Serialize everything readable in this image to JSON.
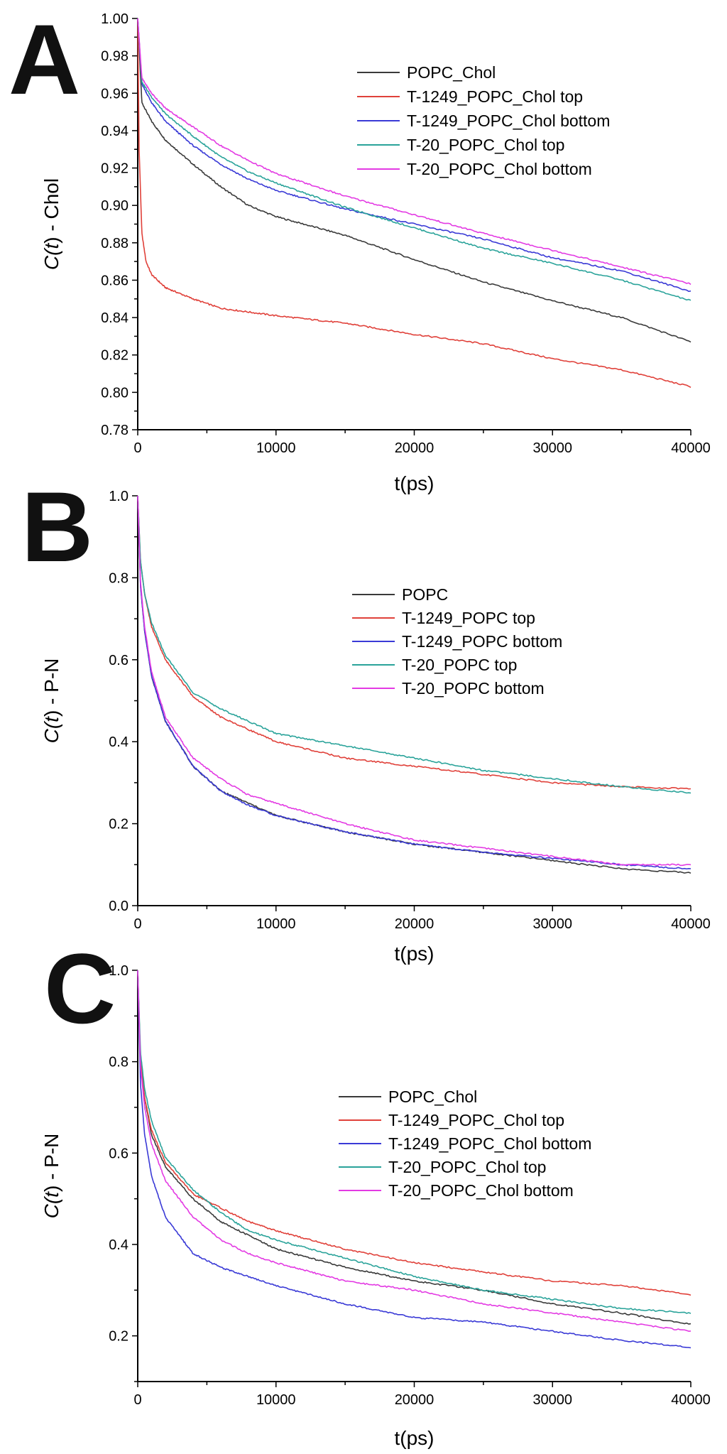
{
  "colors": {
    "black": "#3a3a3a",
    "red": "#e0413a",
    "blue": "#3a3ad6",
    "teal": "#2aa39a",
    "magenta": "#e33ae3"
  },
  "chart_data": [
    {
      "type": "line",
      "panel": "A",
      "xlabel": "t(ps)",
      "ylabel_parts": [
        "C(",
        "t",
        ") - Chol"
      ],
      "xlim": [
        0,
        40000
      ],
      "ylim": [
        0.78,
        1.0
      ],
      "xticks": [
        0,
        10000,
        20000,
        30000,
        40000
      ],
      "xtick_labels": [
        "0",
        "10000",
        "20000",
        "30000",
        "40000"
      ],
      "yticks": [
        0.78,
        0.8,
        0.82,
        0.84,
        0.86,
        0.88,
        0.9,
        0.92,
        0.94,
        0.96,
        0.98,
        1.0
      ],
      "ytick_labels": [
        "0.78",
        "0.80",
        "0.82",
        "0.84",
        "0.86",
        "0.88",
        "0.90",
        "0.92",
        "0.94",
        "0.96",
        "0.98",
        "1.00"
      ],
      "legend_position": "top-right",
      "series": [
        {
          "name": "POPC_Chol",
          "color": "#3a3a3a",
          "x": [
            0,
            300,
            1000,
            2000,
            4000,
            6000,
            8000,
            10000,
            15000,
            20000,
            25000,
            30000,
            35000,
            40000
          ],
          "y": [
            1.0,
            0.955,
            0.945,
            0.935,
            0.922,
            0.91,
            0.9,
            0.894,
            0.884,
            0.871,
            0.859,
            0.849,
            0.84,
            0.827
          ]
        },
        {
          "name": "T-1249_POPC_Chol top",
          "color": "#e0413a",
          "x": [
            0,
            100,
            300,
            600,
            1000,
            2000,
            4000,
            6000,
            10000,
            15000,
            20000,
            25000,
            30000,
            35000,
            40000
          ],
          "y": [
            1.0,
            0.93,
            0.885,
            0.87,
            0.863,
            0.856,
            0.85,
            0.845,
            0.841,
            0.837,
            0.831,
            0.826,
            0.818,
            0.812,
            0.803
          ]
        },
        {
          "name": "T-1249_POPC_Chol bottom",
          "color": "#3a3ad6",
          "x": [
            0,
            300,
            1000,
            2000,
            4000,
            6000,
            8000,
            10000,
            15000,
            20000,
            25000,
            30000,
            35000,
            40000
          ],
          "y": [
            1.0,
            0.965,
            0.955,
            0.945,
            0.932,
            0.922,
            0.914,
            0.908,
            0.898,
            0.89,
            0.882,
            0.872,
            0.865,
            0.854
          ]
        },
        {
          "name": "T-20_POPC_Chol top",
          "color": "#2aa39a",
          "x": [
            0,
            300,
            1000,
            2000,
            4000,
            6000,
            8000,
            10000,
            15000,
            20000,
            25000,
            30000,
            35000,
            40000
          ],
          "y": [
            1.0,
            0.966,
            0.958,
            0.949,
            0.937,
            0.926,
            0.918,
            0.912,
            0.899,
            0.888,
            0.877,
            0.869,
            0.86,
            0.849
          ]
        },
        {
          "name": "T-20_POPC_Chol bottom",
          "color": "#e33ae3",
          "x": [
            0,
            300,
            1000,
            2000,
            4000,
            6000,
            8000,
            10000,
            15000,
            20000,
            25000,
            30000,
            35000,
            40000
          ],
          "y": [
            1.0,
            0.968,
            0.96,
            0.952,
            0.942,
            0.932,
            0.924,
            0.917,
            0.905,
            0.895,
            0.885,
            0.876,
            0.867,
            0.858
          ]
        }
      ]
    },
    {
      "type": "line",
      "panel": "B",
      "xlabel": "t(ps)",
      "ylabel_parts": [
        "C(",
        "t",
        ") - P-N"
      ],
      "xlim": [
        0,
        40000
      ],
      "ylim": [
        0.0,
        1.0
      ],
      "xticks": [
        0,
        10000,
        20000,
        30000,
        40000
      ],
      "xtick_labels": [
        "0",
        "10000",
        "20000",
        "30000",
        "40000"
      ],
      "yticks": [
        0.0,
        0.2,
        0.4,
        0.6,
        0.8,
        1.0
      ],
      "ytick_labels": [
        "0.0",
        "0.2",
        "0.4",
        "0.6",
        "0.8",
        "1.0"
      ],
      "legend_position": "center-right",
      "series": [
        {
          "name": "POPC",
          "color": "#3a3a3a",
          "x": [
            0,
            200,
            500,
            1000,
            2000,
            4000,
            6000,
            8000,
            10000,
            15000,
            20000,
            25000,
            30000,
            35000,
            40000
          ],
          "y": [
            1.0,
            0.78,
            0.67,
            0.56,
            0.45,
            0.34,
            0.28,
            0.25,
            0.22,
            0.18,
            0.15,
            0.13,
            0.11,
            0.09,
            0.08
          ]
        },
        {
          "name": "T-1249_POPC top",
          "color": "#e0413a",
          "x": [
            0,
            200,
            500,
            1000,
            2000,
            4000,
            6000,
            8000,
            10000,
            15000,
            20000,
            25000,
            30000,
            35000,
            40000
          ],
          "y": [
            1.0,
            0.84,
            0.76,
            0.68,
            0.6,
            0.51,
            0.46,
            0.43,
            0.4,
            0.36,
            0.34,
            0.32,
            0.3,
            0.29,
            0.285
          ]
        },
        {
          "name": "T-1249_POPC bottom",
          "color": "#3a3ad6",
          "x": [
            0,
            200,
            500,
            1000,
            2000,
            4000,
            6000,
            8000,
            10000,
            15000,
            20000,
            25000,
            30000,
            35000,
            40000
          ],
          "y": [
            1.0,
            0.78,
            0.67,
            0.56,
            0.45,
            0.34,
            0.28,
            0.245,
            0.22,
            0.18,
            0.15,
            0.13,
            0.115,
            0.1,
            0.09
          ]
        },
        {
          "name": "T-20_POPC top",
          "color": "#2aa39a",
          "x": [
            0,
            200,
            500,
            1000,
            2000,
            4000,
            6000,
            8000,
            10000,
            15000,
            20000,
            25000,
            30000,
            35000,
            40000
          ],
          "y": [
            1.0,
            0.84,
            0.76,
            0.69,
            0.61,
            0.52,
            0.48,
            0.45,
            0.42,
            0.39,
            0.36,
            0.33,
            0.31,
            0.29,
            0.275
          ]
        },
        {
          "name": "T-20_POPC bottom",
          "color": "#e33ae3",
          "x": [
            0,
            200,
            500,
            1000,
            2000,
            4000,
            6000,
            8000,
            10000,
            15000,
            20000,
            25000,
            30000,
            35000,
            40000
          ],
          "y": [
            1.0,
            0.79,
            0.68,
            0.57,
            0.46,
            0.36,
            0.31,
            0.27,
            0.25,
            0.2,
            0.16,
            0.14,
            0.12,
            0.1,
            0.1
          ]
        }
      ]
    },
    {
      "type": "line",
      "panel": "C",
      "xlabel": "t(ps)",
      "ylabel_parts": [
        "C(",
        "t",
        ") - P-N"
      ],
      "xlim": [
        0,
        40000
      ],
      "ylim": [
        0.1,
        1.0
      ],
      "xticks": [
        0,
        10000,
        20000,
        30000,
        40000
      ],
      "xtick_labels": [
        "0",
        "10000",
        "20000",
        "30000",
        "40000"
      ],
      "yticks": [
        0.2,
        0.4,
        0.6,
        0.8,
        1.0
      ],
      "ytick_labels": [
        "0.2",
        "0.4",
        "0.6",
        "0.8",
        "1.0"
      ],
      "legend_position": "center-right",
      "series": [
        {
          "name": "POPC_Chol",
          "color": "#3a3a3a",
          "x": [
            0,
            200,
            500,
            1000,
            2000,
            4000,
            6000,
            8000,
            10000,
            15000,
            20000,
            25000,
            30000,
            35000,
            40000
          ],
          "y": [
            1.0,
            0.8,
            0.72,
            0.64,
            0.57,
            0.5,
            0.45,
            0.42,
            0.39,
            0.35,
            0.32,
            0.3,
            0.27,
            0.25,
            0.225
          ]
        },
        {
          "name": "T-1249_POPC_Chol top",
          "color": "#e0413a",
          "x": [
            0,
            200,
            500,
            1000,
            2000,
            4000,
            6000,
            8000,
            10000,
            15000,
            20000,
            25000,
            30000,
            35000,
            40000
          ],
          "y": [
            1.0,
            0.8,
            0.72,
            0.65,
            0.58,
            0.51,
            0.48,
            0.45,
            0.43,
            0.39,
            0.36,
            0.34,
            0.32,
            0.31,
            0.29
          ]
        },
        {
          "name": "T-1249_POPC_Chol bottom",
          "color": "#3a3ad6",
          "x": [
            0,
            200,
            500,
            1000,
            2000,
            4000,
            6000,
            8000,
            10000,
            15000,
            20000,
            25000,
            30000,
            35000,
            40000
          ],
          "y": [
            1.0,
            0.75,
            0.64,
            0.55,
            0.46,
            0.38,
            0.35,
            0.33,
            0.31,
            0.27,
            0.24,
            0.23,
            0.21,
            0.19,
            0.175
          ]
        },
        {
          "name": "T-20_POPC_Chol top",
          "color": "#2aa39a",
          "x": [
            0,
            200,
            500,
            1000,
            2000,
            4000,
            6000,
            8000,
            10000,
            15000,
            20000,
            25000,
            30000,
            35000,
            40000
          ],
          "y": [
            1.0,
            0.82,
            0.74,
            0.67,
            0.59,
            0.52,
            0.47,
            0.43,
            0.41,
            0.37,
            0.33,
            0.3,
            0.28,
            0.26,
            0.25
          ]
        },
        {
          "name": "T-20_POPC_Chol bottom",
          "color": "#e33ae3",
          "x": [
            0,
            200,
            500,
            1000,
            2000,
            4000,
            6000,
            8000,
            10000,
            15000,
            20000,
            25000,
            30000,
            35000,
            40000
          ],
          "y": [
            1.0,
            0.79,
            0.7,
            0.62,
            0.54,
            0.46,
            0.41,
            0.38,
            0.36,
            0.32,
            0.3,
            0.27,
            0.25,
            0.23,
            0.21
          ]
        }
      ]
    }
  ]
}
